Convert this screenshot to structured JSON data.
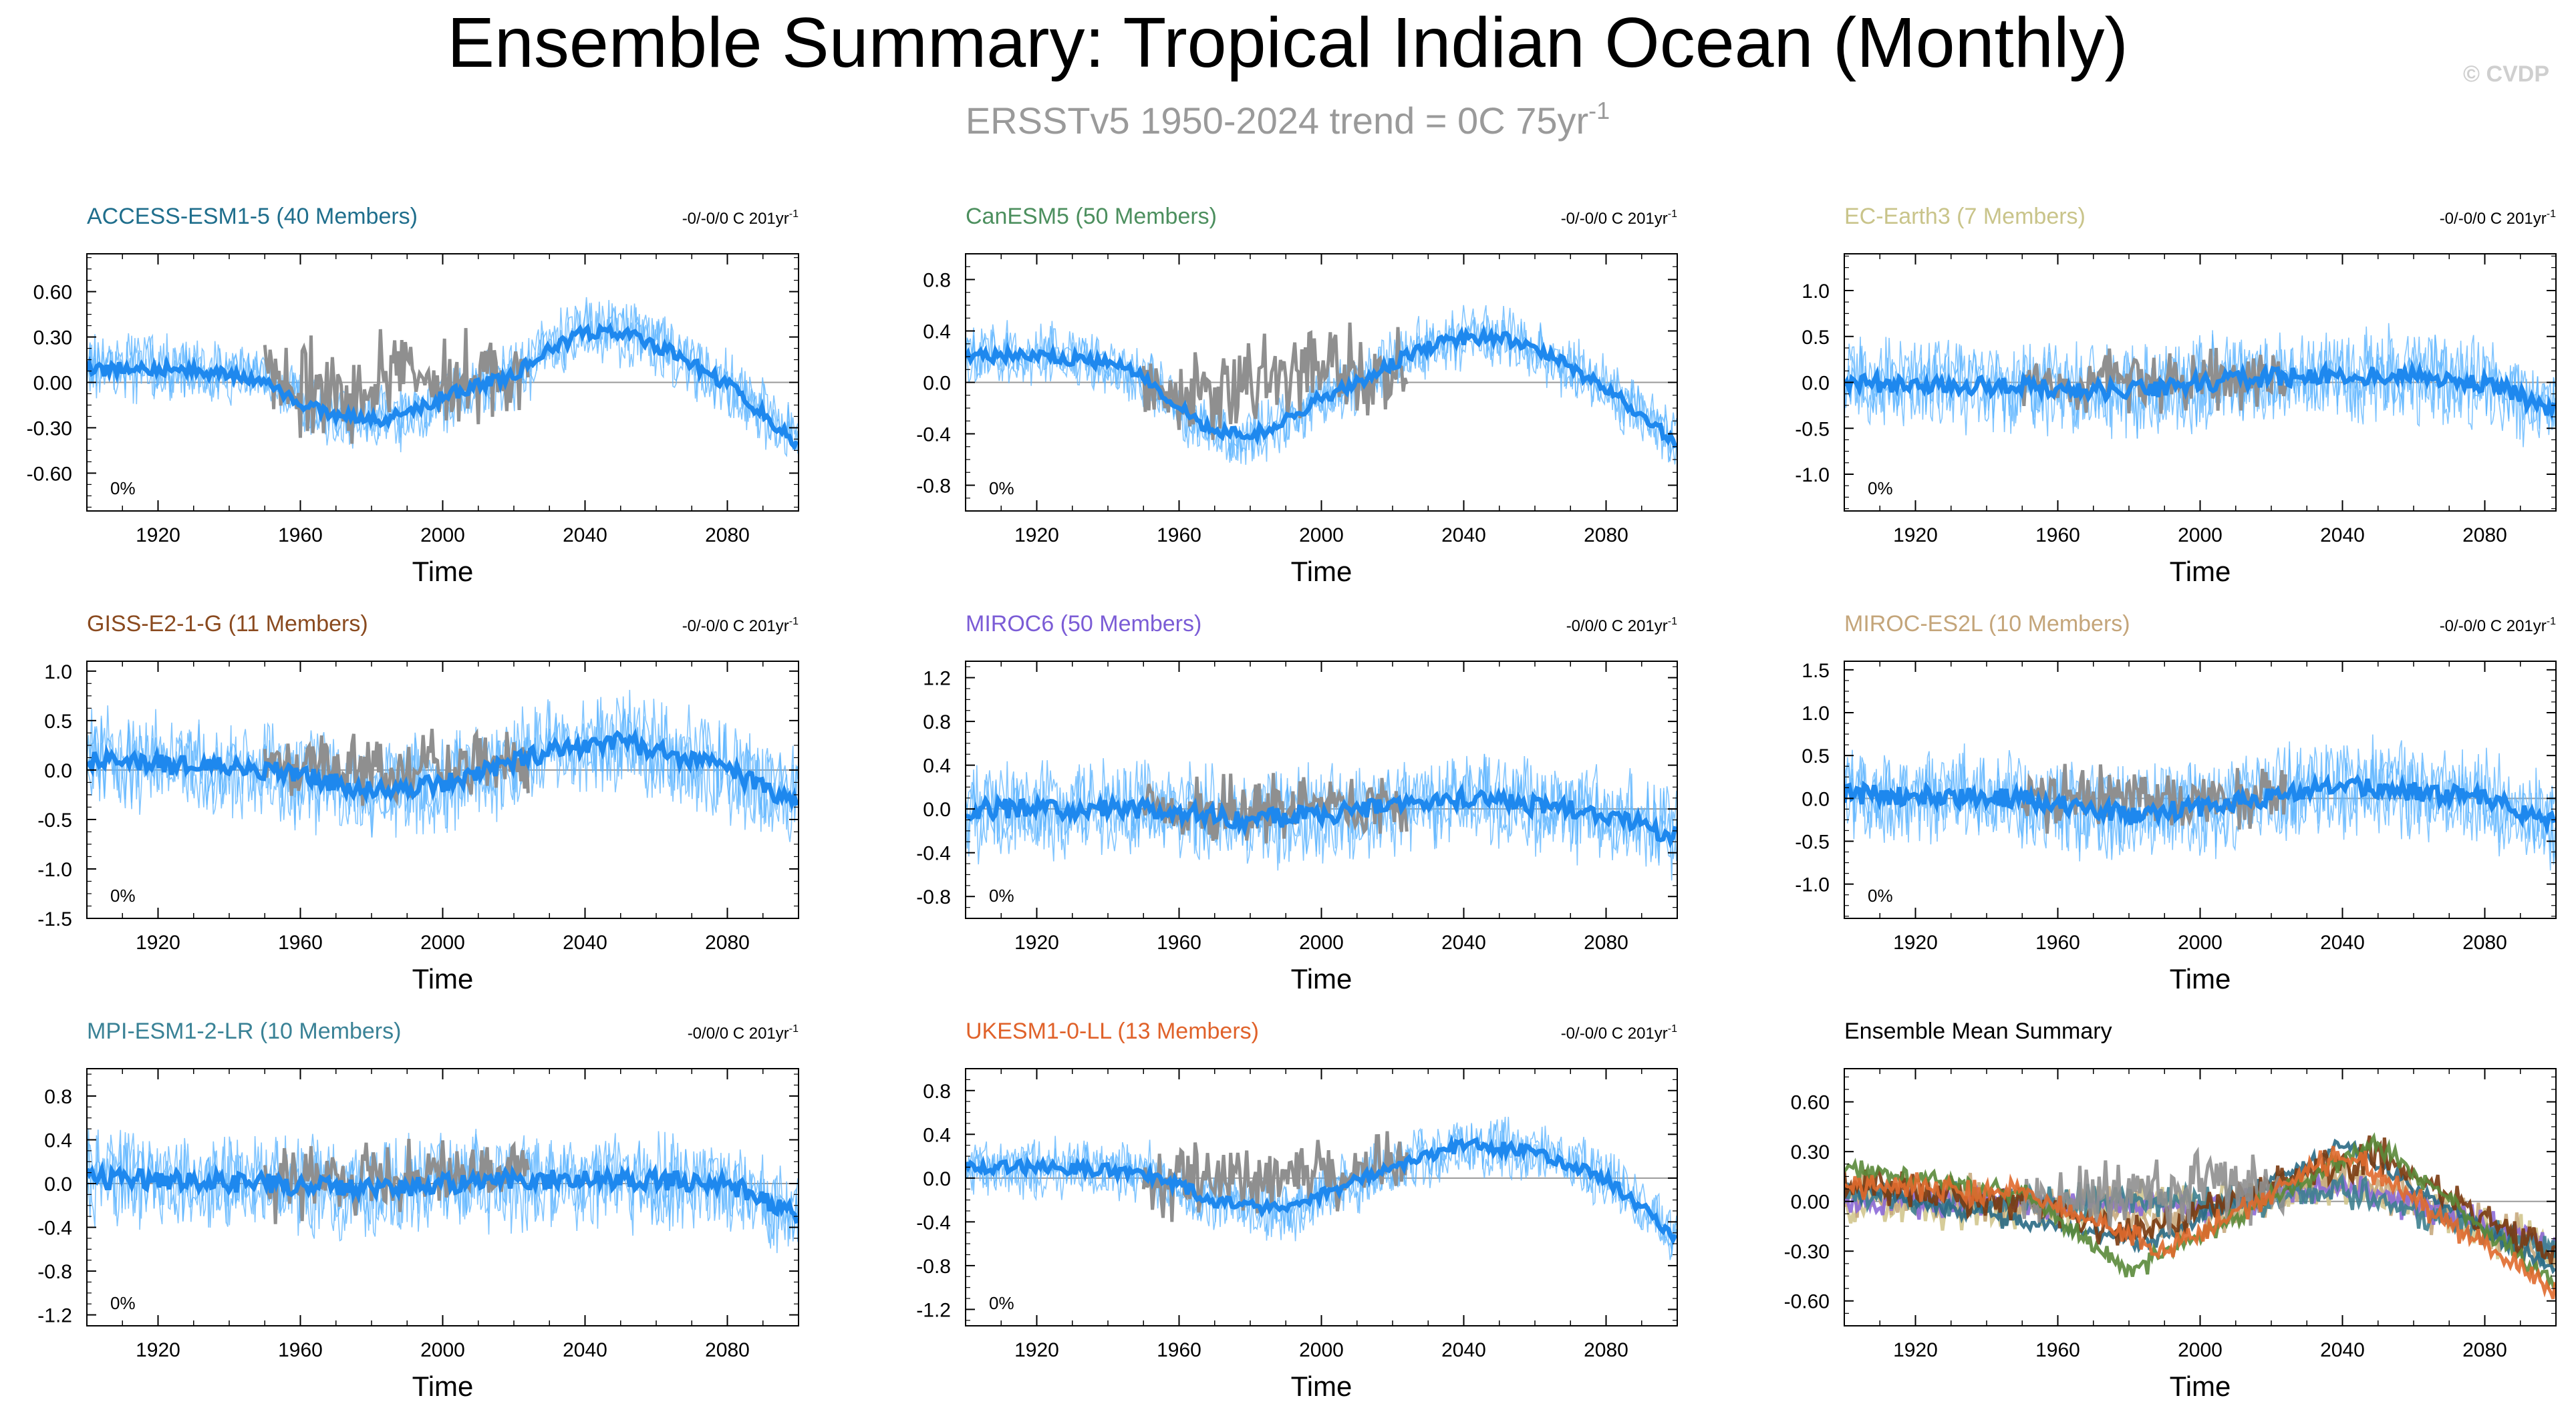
{
  "title": "Ensemble Summary: Tropical Indian Ocean (Monthly)",
  "subtitle": {
    "prefix": "ERSSTv5 1950-2024 trend = 0C 75yr",
    "superscript": "-1"
  },
  "watermark": "© CVDP",
  "obs_color": "#8f8f8f",
  "ensemble_spread_color": "#59b3ff",
  "ensemble_mean_color": "#1e88ee",
  "chart_data": [
    {
      "type": "line",
      "model": "ACCESS-ESM1-5 (40 Members)",
      "title_color": "#1f6e8c",
      "trend_label": "-0/-0/0 C 201yr",
      "trend_sup": "-1",
      "pct_label": "0%",
      "xlabel": "Time",
      "xlim": [
        1900,
        2100
      ],
      "xticks": [
        1920,
        1960,
        2000,
        2040,
        2080
      ],
      "ylim": [
        -0.85,
        0.85
      ],
      "yticks": [
        -0.6,
        -0.3,
        0.0,
        0.3,
        0.6
      ],
      "ytick_labels": [
        "-0.60",
        "-0.30",
        "0.00",
        "0.30",
        "0.60"
      ],
      "ensemble_mean": {
        "x": [
          1900,
          1920,
          1940,
          1950,
          1960,
          1970,
          1980,
          1990,
          2000,
          2010,
          2020,
          2030,
          2040,
          2050,
          2060,
          2070,
          2080,
          2090,
          2100
        ],
        "y": [
          0.08,
          0.1,
          0.05,
          0.02,
          -0.15,
          -0.22,
          -0.25,
          -0.22,
          -0.1,
          -0.02,
          0.05,
          0.22,
          0.33,
          0.34,
          0.25,
          0.12,
          -0.02,
          -0.2,
          -0.42
        ]
      },
      "spread": 0.2,
      "obs": {
        "x": [
          1950,
          1960,
          1970,
          1980,
          1990,
          2000,
          2010,
          2024
        ],
        "y": [
          0.05,
          -0.05,
          -0.1,
          0.0,
          0.05,
          0.02,
          0.05,
          0.1
        ],
        "amp": 0.4
      }
    },
    {
      "type": "line",
      "model": "CanESM5 (50 Members)",
      "title_color": "#4c8f5e",
      "trend_label": "-0/-0/0 C 201yr",
      "trend_sup": "-1",
      "pct_label": "0%",
      "xlabel": "Time",
      "xlim": [
        1900,
        2100
      ],
      "xticks": [
        1920,
        1960,
        2000,
        2040,
        2080
      ],
      "ylim": [
        -1.0,
        1.0
      ],
      "yticks": [
        -0.8,
        -0.4,
        0.0,
        0.4,
        0.8
      ],
      "ytick_labels": [
        "-0.8",
        "-0.4",
        "0.0",
        "0.4",
        "0.8"
      ],
      "ensemble_mean": {
        "x": [
          1900,
          1920,
          1940,
          1950,
          1960,
          1970,
          1980,
          1990,
          2000,
          2010,
          2020,
          2030,
          2040,
          2050,
          2060,
          2070,
          2080,
          2090,
          2100
        ],
        "y": [
          0.2,
          0.22,
          0.15,
          0.05,
          -0.2,
          -0.38,
          -0.42,
          -0.3,
          -0.12,
          0.0,
          0.15,
          0.28,
          0.34,
          0.35,
          0.28,
          0.12,
          -0.05,
          -0.25,
          -0.5
        ]
      },
      "spread": 0.22,
      "obs": {
        "x": [
          1950,
          1960,
          1970,
          1980,
          1990,
          2000,
          2010,
          2024
        ],
        "y": [
          0.05,
          -0.1,
          -0.1,
          -0.05,
          0.05,
          0.05,
          0.05,
          0.1
        ],
        "amp": 0.45
      }
    },
    {
      "type": "line",
      "model": "EC-Earth3 (7 Members)",
      "title_color": "#c9c48a",
      "trend_label": "-0/-0/0 C 201yr",
      "trend_sup": "-1",
      "pct_label": "0%",
      "xlabel": "Time",
      "xlim": [
        1900,
        2100
      ],
      "xticks": [
        1920,
        1960,
        2000,
        2040,
        2080
      ],
      "ylim": [
        -1.4,
        1.4
      ],
      "yticks": [
        -1.0,
        -0.5,
        0.0,
        0.5,
        1.0
      ],
      "ytick_labels": [
        "-1.0",
        "-0.5",
        "0.0",
        "0.5",
        "1.0"
      ],
      "ensemble_mean": {
        "x": [
          1900,
          1950,
          1980,
          2000,
          2040,
          2080,
          2100
        ],
        "y": [
          0.0,
          -0.05,
          -0.1,
          0.0,
          0.1,
          0.0,
          -0.3
        ]
      },
      "spread": 0.45,
      "obs": {
        "x": [
          1950,
          1980,
          2024
        ],
        "y": [
          0.0,
          0.0,
          0.05
        ],
        "amp": 0.4
      }
    },
    {
      "type": "line",
      "model": "GISS-E2-1-G (11 Members)",
      "title_color": "#8a4a1f",
      "trend_label": "-0/-0/0 C 201yr",
      "trend_sup": "-1",
      "pct_label": "0%",
      "xlabel": "Time",
      "xlim": [
        1900,
        2100
      ],
      "xticks": [
        1920,
        1960,
        2000,
        2040,
        2080
      ],
      "ylim": [
        -1.5,
        1.1
      ],
      "yticks": [
        -1.5,
        -1.0,
        -0.5,
        0.0,
        0.5,
        1.0
      ],
      "ytick_labels": [
        "-1.5",
        "-1.0",
        "-0.5",
        "0.0",
        "0.5",
        "1.0"
      ],
      "ensemble_mean": {
        "x": [
          1900,
          1950,
          1980,
          2000,
          2030,
          2050,
          2080,
          2100
        ],
        "y": [
          0.1,
          0.0,
          -0.2,
          -0.15,
          0.2,
          0.3,
          0.0,
          -0.35
        ]
      },
      "spread": 0.45,
      "obs": {
        "x": [
          1950,
          1990,
          2024
        ],
        "y": [
          0.0,
          0.0,
          0.1
        ],
        "amp": 0.45
      }
    },
    {
      "type": "line",
      "model": "MIROC6 (50 Members)",
      "title_color": "#7b5cd6",
      "trend_label": "-0/0/0 C 201yr",
      "trend_sup": "-1",
      "pct_label": "0%",
      "xlabel": "Time",
      "xlim": [
        1900,
        2100
      ],
      "xticks": [
        1920,
        1960,
        2000,
        2040,
        2080
      ],
      "ylim": [
        -1.0,
        1.35
      ],
      "yticks": [
        -0.8,
        -0.4,
        0.0,
        0.4,
        0.8,
        1.2
      ],
      "ytick_labels": [
        "-0.8",
        "-0.4",
        "0.0",
        "0.4",
        "0.8",
        "1.2"
      ],
      "ensemble_mean": {
        "x": [
          1900,
          1950,
          1980,
          2000,
          2040,
          2080,
          2100
        ],
        "y": [
          0.0,
          0.0,
          -0.1,
          -0.05,
          0.1,
          -0.05,
          -0.25
        ]
      },
      "spread": 0.4,
      "obs": {
        "x": [
          1950,
          1990,
          2024
        ],
        "y": [
          0.0,
          0.0,
          0.05
        ],
        "amp": 0.35
      }
    },
    {
      "type": "line",
      "model": "MIROC-ES2L (10 Members)",
      "title_color": "#c4a57a",
      "trend_label": "-0/-0/0 C 201yr",
      "trend_sup": "-1",
      "pct_label": "0%",
      "xlabel": "Time",
      "xlim": [
        1900,
        2100
      ],
      "xticks": [
        1920,
        1960,
        2000,
        2040,
        2080
      ],
      "ylim": [
        -1.4,
        1.6
      ],
      "yticks": [
        -1.0,
        -0.5,
        0.0,
        0.5,
        1.0,
        1.5
      ],
      "ytick_labels": [
        "-1.0",
        "-0.5",
        "0.0",
        "0.5",
        "1.0",
        "1.5"
      ],
      "ensemble_mean": {
        "x": [
          1900,
          1950,
          1980,
          2000,
          2040,
          2080,
          2100
        ],
        "y": [
          0.05,
          0.0,
          -0.2,
          -0.1,
          0.15,
          0.0,
          -0.3
        ]
      },
      "spread": 0.5,
      "obs": {
        "x": [
          1950,
          1990,
          2024
        ],
        "y": [
          0.0,
          0.0,
          0.1
        ],
        "amp": 0.45
      }
    },
    {
      "type": "line",
      "model": "MPI-ESM1-2-LR (10 Members)",
      "title_color": "#3a8296",
      "trend_label": "-0/0/0 C 201yr",
      "trend_sup": "-1",
      "pct_label": "0%",
      "xlabel": "Time",
      "xlim": [
        1900,
        2100
      ],
      "xticks": [
        1920,
        1960,
        2000,
        2040,
        2080
      ],
      "ylim": [
        -1.3,
        1.05
      ],
      "yticks": [
        -1.2,
        -0.8,
        -0.4,
        0.0,
        0.4,
        0.8
      ],
      "ytick_labels": [
        "-1.2",
        "-0.8",
        "-0.4",
        "0.0",
        "0.4",
        "0.8"
      ],
      "ensemble_mean": {
        "x": [
          1900,
          1950,
          1980,
          2000,
          2040,
          2080,
          2100
        ],
        "y": [
          0.05,
          0.0,
          -0.05,
          0.0,
          0.05,
          0.0,
          -0.3
        ]
      },
      "spread": 0.4,
      "obs": {
        "x": [
          1950,
          1990,
          2024
        ],
        "y": [
          0.0,
          0.05,
          0.1
        ],
        "amp": 0.4
      }
    },
    {
      "type": "line",
      "model": "UKESM1-0-LL (13 Members)",
      "title_color": "#e0622a",
      "trend_label": "-0/-0/0 C 201yr",
      "trend_sup": "-1",
      "pct_label": "0%",
      "xlabel": "Time",
      "xlim": [
        1900,
        2100
      ],
      "xticks": [
        1920,
        1960,
        2000,
        2040,
        2080
      ],
      "ylim": [
        -1.35,
        1.0
      ],
      "yticks": [
        -1.2,
        -0.8,
        -0.4,
        0.0,
        0.4,
        0.8
      ],
      "ytick_labels": [
        "-1.2",
        "-0.8",
        "-0.4",
        "0.0",
        "0.4",
        "0.8"
      ],
      "ensemble_mean": {
        "x": [
          1900,
          1920,
          1950,
          1970,
          1990,
          2000,
          2020,
          2040,
          2060,
          2080,
          2100
        ],
        "y": [
          0.1,
          0.1,
          0.05,
          -0.2,
          -0.3,
          -0.15,
          0.1,
          0.3,
          0.25,
          0.0,
          -0.55
        ]
      },
      "spread": 0.25,
      "obs": {
        "x": [
          1950,
          1990,
          2024
        ],
        "y": [
          -0.05,
          0.0,
          0.1
        ],
        "amp": 0.4
      }
    },
    {
      "type": "line",
      "model": "Ensemble Mean Summary",
      "title_color": "#000000",
      "trend_label": "",
      "trend_sup": "",
      "pct_label": "",
      "xlabel": "Time",
      "xlim": [
        1900,
        2100
      ],
      "xticks": [
        1920,
        1960,
        2000,
        2040,
        2080
      ],
      "ylim": [
        -0.75,
        0.8
      ],
      "yticks": [
        -0.6,
        -0.3,
        0.0,
        0.3,
        0.6
      ],
      "ytick_labels": [
        "-0.60",
        "-0.30",
        "0.00",
        "0.30",
        "0.60"
      ],
      "summary": true,
      "series": [
        {
          "name": "EC-Earth3",
          "color": "#d2c68e",
          "x": [
            1900,
            1950,
            2000,
            2040,
            2100
          ],
          "y": [
            0.0,
            -0.05,
            0.0,
            0.1,
            -0.3
          ],
          "amp": 0.18
        },
        {
          "name": "MIROC-ES2L",
          "color": "#c8aa7e",
          "x": [
            1900,
            1950,
            2000,
            2040,
            2100
          ],
          "y": [
            0.05,
            0.0,
            -0.1,
            0.15,
            -0.3
          ],
          "amp": 0.18
        },
        {
          "name": "MIROC6",
          "color": "#8c6ad8",
          "x": [
            1900,
            1950,
            2000,
            2040,
            2100
          ],
          "y": [
            0.0,
            0.0,
            -0.05,
            0.1,
            -0.25
          ],
          "amp": 0.12
        },
        {
          "name": "MPI-ESM1-2-LR",
          "color": "#3d7f8f",
          "x": [
            1900,
            1950,
            2000,
            2040,
            2100
          ],
          "y": [
            0.05,
            0.0,
            0.0,
            0.05,
            -0.3
          ],
          "amp": 0.13
        },
        {
          "name": "ACCESS-ESM1-5",
          "color": "#2a6a85",
          "x": [
            1900,
            1960,
            1985,
            2040,
            2100
          ],
          "y": [
            0.08,
            -0.15,
            -0.25,
            0.33,
            -0.42
          ],
          "amp": 0.08
        },
        {
          "name": "GISS-E2-1-G",
          "color": "#7a3a10",
          "x": [
            1900,
            1950,
            1980,
            2050,
            2100
          ],
          "y": [
            0.1,
            0.0,
            -0.2,
            0.3,
            -0.35
          ],
          "amp": 0.14
        },
        {
          "name": "Observations",
          "color": "#8f8f8f",
          "x": [
            1950,
            1990,
            2024
          ],
          "y": [
            0.0,
            0.05,
            0.1
          ],
          "amp": 0.3
        },
        {
          "name": "CanESM5",
          "color": "#5a8a3a",
          "x": [
            1900,
            1950,
            1980,
            2050,
            2100
          ],
          "y": [
            0.2,
            0.05,
            -0.42,
            0.35,
            -0.5
          ],
          "amp": 0.08
        },
        {
          "name": "UKESM1-0-LL",
          "color": "#e06a2e",
          "x": [
            1900,
            1950,
            1990,
            2040,
            2100
          ],
          "y": [
            0.1,
            0.05,
            -0.3,
            0.3,
            -0.55
          ],
          "amp": 0.1
        }
      ]
    }
  ]
}
